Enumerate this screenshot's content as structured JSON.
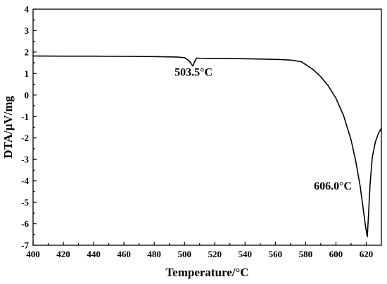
{
  "chart_data": {
    "type": "line",
    "title": "",
    "xlabel": "Temperature/°C",
    "ylabel": "DTA/µV/mg",
    "xlim": [
      400,
      630
    ],
    "ylim": [
      -7,
      4
    ],
    "grid": false,
    "x_ticks": [
      400,
      420,
      440,
      460,
      480,
      500,
      520,
      540,
      560,
      580,
      600,
      620
    ],
    "y_ticks": [
      4,
      3,
      2,
      1,
      0,
      -1,
      -2,
      -3,
      -4,
      -5,
      -6,
      -7
    ],
    "series": [
      {
        "color": "#000000",
        "x": [
          400,
          420,
          440,
          460,
          480,
          495,
          500,
          503,
          505.5,
          507,
          508,
          510,
          520,
          540,
          560,
          570,
          577,
          580,
          585,
          590,
          595,
          600,
          605,
          610,
          613,
          616,
          618,
          619.5,
          620.7,
          621.5,
          622.5,
          624,
          626,
          628,
          630
        ],
        "y": [
          1.82,
          1.81,
          1.81,
          1.8,
          1.79,
          1.77,
          1.74,
          1.6,
          1.35,
          1.6,
          1.72,
          1.71,
          1.7,
          1.69,
          1.66,
          1.63,
          1.55,
          1.42,
          1.18,
          0.85,
          0.42,
          -0.15,
          -0.95,
          -2.1,
          -3.05,
          -4.25,
          -5.3,
          -6.1,
          -6.6,
          -5.6,
          -4.2,
          -2.9,
          -2.2,
          -1.8,
          -1.55
        ]
      }
    ],
    "annotations": [
      {
        "text": "503.5°C",
        "x": 506,
        "y": 0.9
      },
      {
        "text": "606.0°C",
        "x": 598,
        "y": -4.4
      }
    ]
  }
}
